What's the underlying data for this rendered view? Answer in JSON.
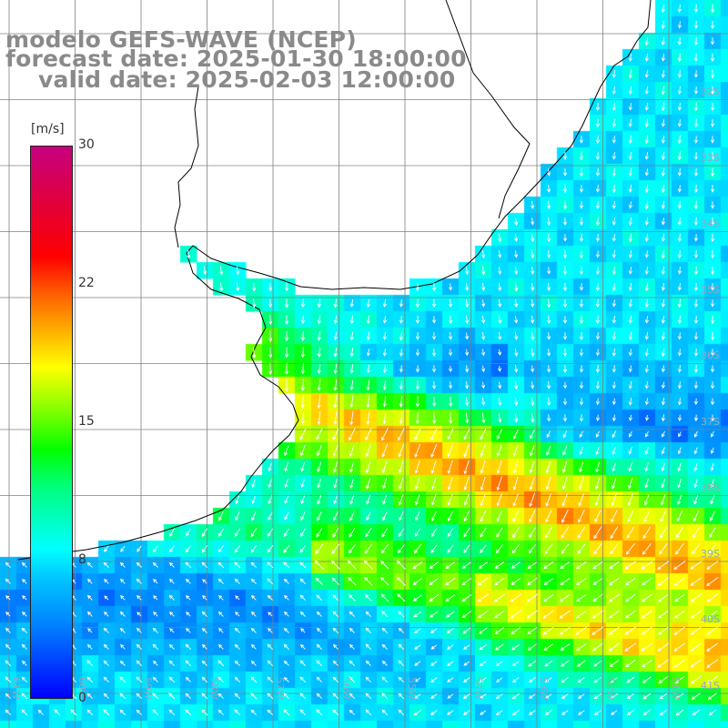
{
  "title": {
    "model": "modelo GEFS-WAVE (NCEP)",
    "forecast": "forecast date: 2025-01-30 18:00:00",
    "valid": "valid date: 2025-02-03 12:00:00"
  },
  "colorbar": {
    "unit": "[m/s]",
    "ticks": [
      "30",
      "22",
      "15",
      "8",
      "0"
    ],
    "tick_values": [
      30,
      22,
      15,
      8,
      0
    ],
    "range": [
      0,
      30
    ]
  },
  "map": {
    "lon_labels": [
      "61W",
      "60W",
      "59W",
      "58W",
      "57W",
      "56W",
      "55W",
      "54W",
      "53W",
      "52W",
      "51W"
    ],
    "lat_labels": [
      "32S",
      "33S",
      "34S",
      "35S",
      "36S",
      "37S",
      "38S",
      "39S",
      "40S",
      "41S"
    ],
    "lon_range": [
      -61,
      -50
    ],
    "lat_range": [
      -31,
      -41.5
    ],
    "field": "wind speed",
    "land_color": "#ffffff",
    "grid_color": "#808080",
    "coast_color": "#000000",
    "arrow_color": "#ffffff"
  }
}
